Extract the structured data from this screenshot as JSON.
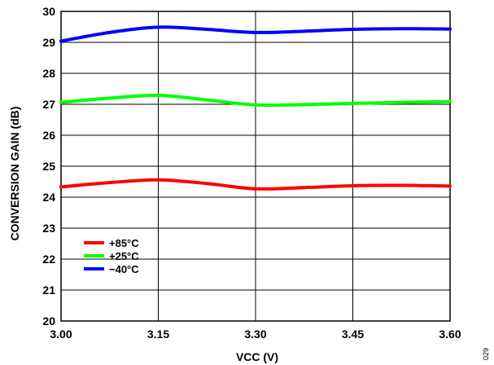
{
  "chart_data": {
    "type": "line",
    "xlabel": "VCC (V)",
    "ylabel": "CONVERSION GAIN (dB)",
    "xlim": [
      3.0,
      3.6
    ],
    "ylim": [
      20,
      30
    ],
    "xticks": [
      "3.00",
      "3.15",
      "3.30",
      "3.45",
      "3.60"
    ],
    "yticks": [
      "20",
      "21",
      "22",
      "23",
      "24",
      "25",
      "26",
      "27",
      "28",
      "29",
      "30"
    ],
    "grid": true,
    "legend_position": "bottom-left",
    "x": [
      3.0,
      3.075,
      3.15,
      3.225,
      3.3,
      3.375,
      3.45,
      3.525,
      3.6
    ],
    "series": [
      {
        "name": "+85°C",
        "color": "#ff0000",
        "values": [
          24.33,
          24.47,
          24.56,
          24.44,
          24.27,
          24.31,
          24.37,
          24.38,
          24.36
        ]
      },
      {
        "name": "+25°C",
        "color": "#00ff00",
        "values": [
          27.06,
          27.2,
          27.29,
          27.14,
          26.98,
          26.99,
          27.03,
          27.06,
          27.09
        ]
      },
      {
        "name": "−40°C",
        "color": "#0000ff",
        "values": [
          29.04,
          29.32,
          29.49,
          29.42,
          29.32,
          29.36,
          29.42,
          29.44,
          29.43
        ]
      }
    ]
  },
  "figure_id": "029"
}
